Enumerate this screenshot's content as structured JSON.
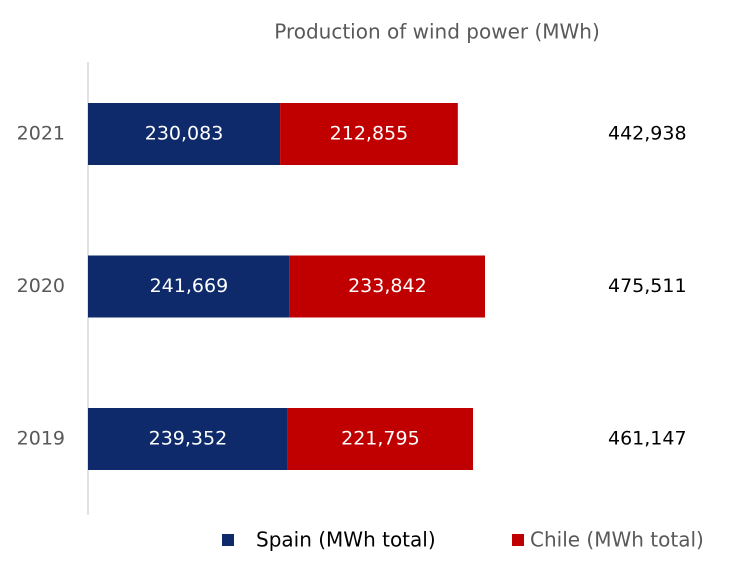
{
  "chart_data": {
    "type": "stacked_bar_horizontal",
    "title": "Production of wind power (MWh)",
    "categories": [
      "2021",
      "2020",
      "2019"
    ],
    "series": [
      {
        "name": "Spain (MWh total)",
        "color": "#0e2a6b",
        "values": [
          230083,
          241669,
          239352
        ],
        "value_labels": [
          "230,083",
          "241,669",
          "239,352"
        ]
      },
      {
        "name": "Chile (MWh total)",
        "color": "#c00000",
        "values": [
          212855,
          233842,
          221795
        ],
        "value_labels": [
          "212,855",
          "233,842",
          "221,795"
        ]
      }
    ],
    "totals": [
      442938,
      475511,
      461147
    ],
    "total_labels": [
      "442,938",
      "475,511",
      "461,147"
    ]
  }
}
